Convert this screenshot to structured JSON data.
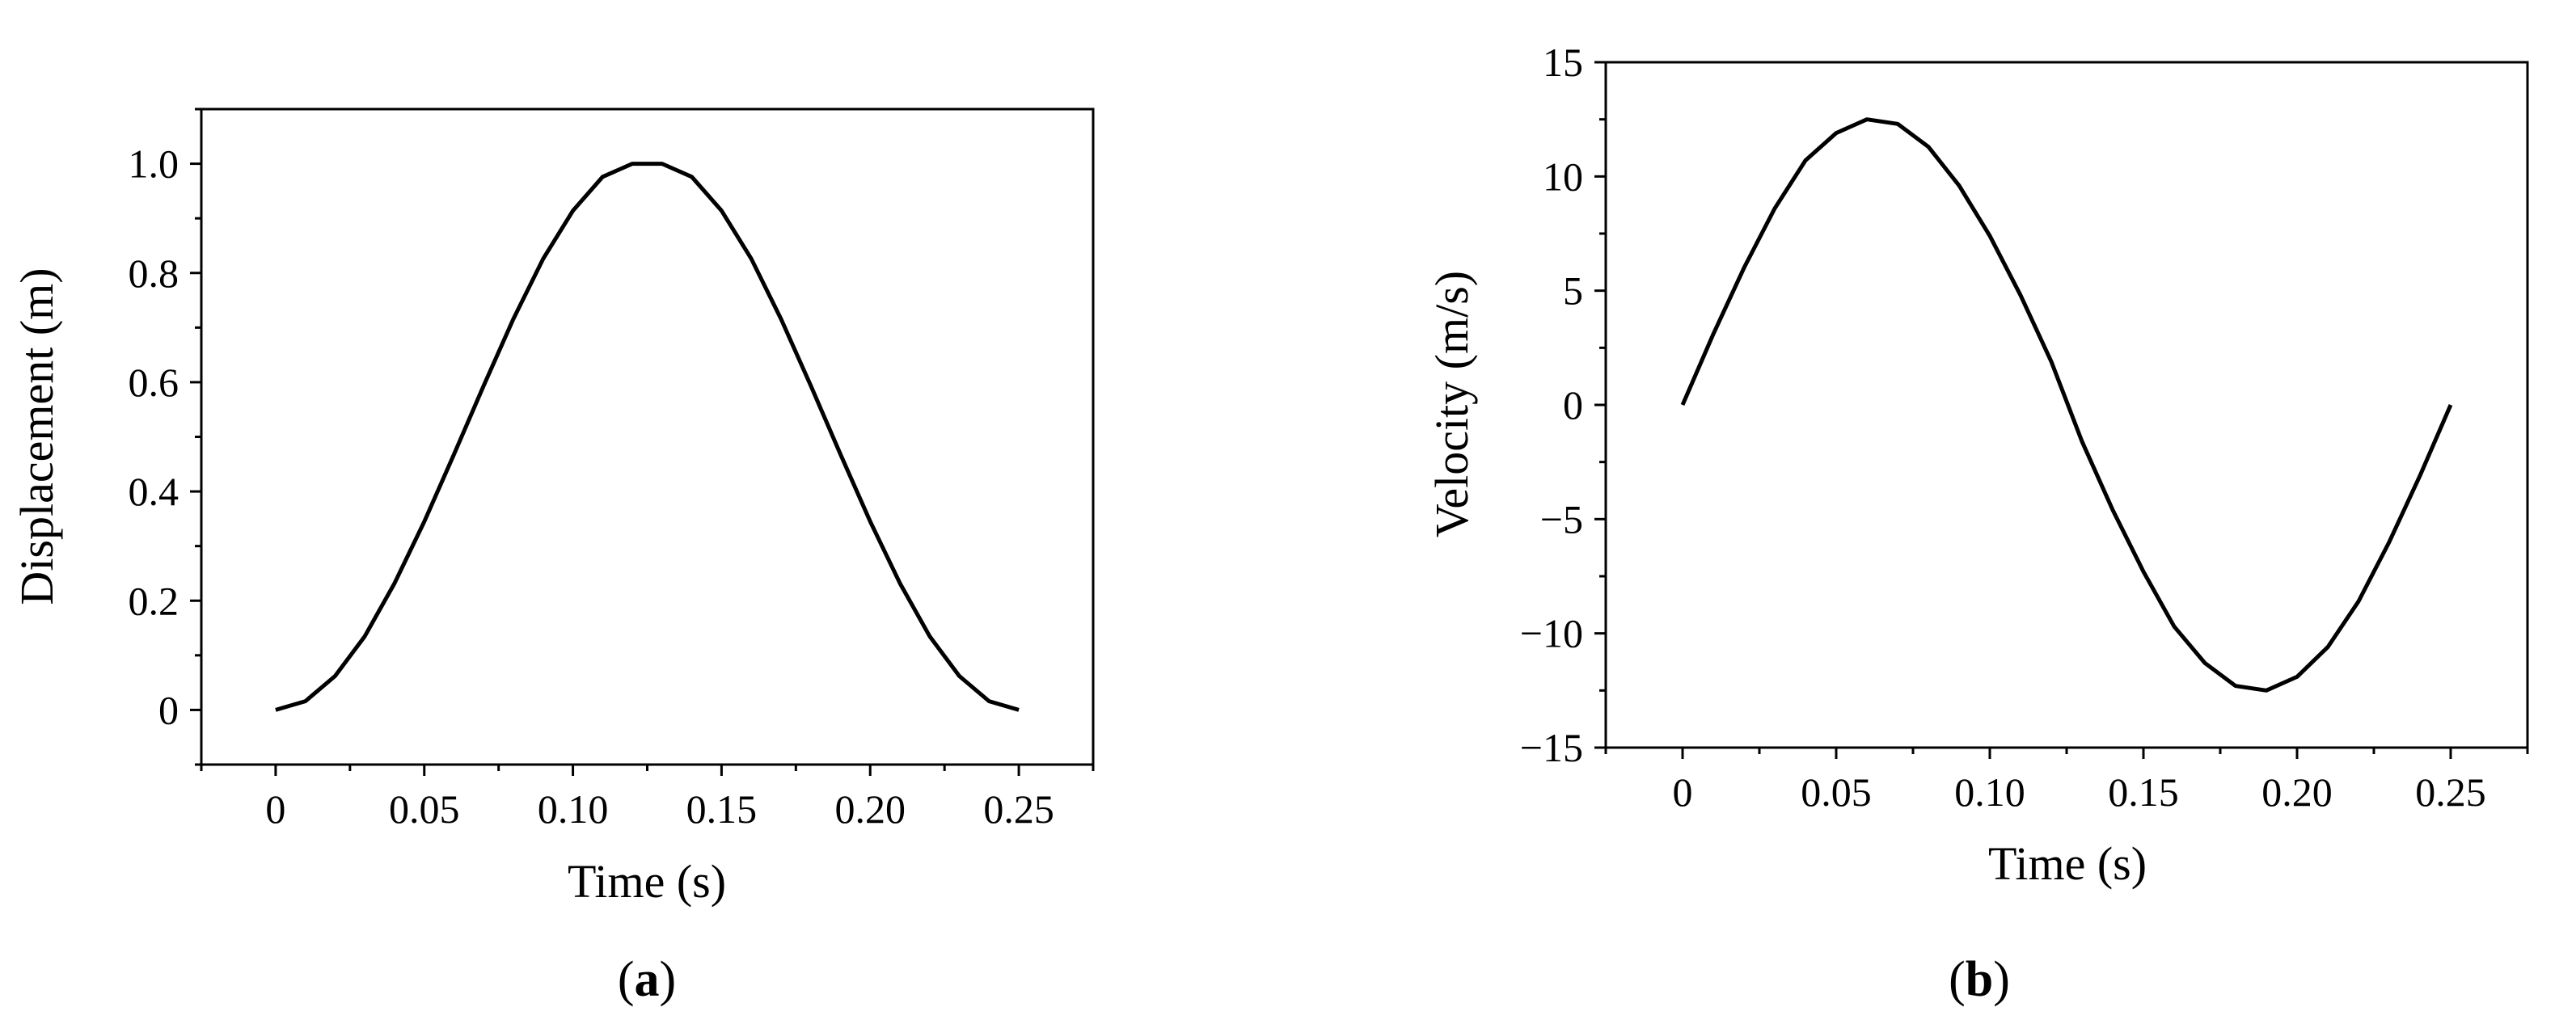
{
  "chart_data": [
    {
      "type": "line",
      "panel_label": {
        "open": "(",
        "letter": "a",
        "close": ")"
      },
      "xlabel": "Time (s)",
      "ylabel": "Displacement (m)",
      "xlim": [
        -0.025,
        0.275
      ],
      "ylim": [
        -0.1,
        1.1
      ],
      "xticks": [
        {
          "value": 0,
          "label": "0"
        },
        {
          "value": 0.05,
          "label": "0.05"
        },
        {
          "value": 0.1,
          "label": "0.10"
        },
        {
          "value": 0.15,
          "label": "0.15"
        },
        {
          "value": 0.2,
          "label": "0.20"
        },
        {
          "value": 0.25,
          "label": "0.25"
        }
      ],
      "yticks": [
        {
          "value": 0,
          "label": "0"
        },
        {
          "value": 0.2,
          "label": "0.2"
        },
        {
          "value": 0.4,
          "label": "0.4"
        },
        {
          "value": 0.6,
          "label": "0.6"
        },
        {
          "value": 0.8,
          "label": "0.8"
        },
        {
          "value": 1.0,
          "label": "1.0"
        }
      ],
      "x_minor_ticks": [
        -0.025,
        0.025,
        0.075,
        0.125,
        0.175,
        0.225,
        0.275
      ],
      "y_minor_ticks": [
        -0.1,
        0.1,
        0.3,
        0.5,
        0.7,
        0.9,
        1.1
      ],
      "grid": false,
      "series": [
        {
          "color": "#000000",
          "x": [
            0,
            0.01,
            0.02,
            0.03,
            0.04,
            0.05,
            0.06,
            0.07,
            0.08,
            0.09,
            0.1,
            0.11,
            0.12,
            0.13,
            0.14,
            0.15,
            0.16,
            0.17,
            0.18,
            0.19,
            0.2,
            0.21,
            0.22,
            0.23,
            0.24,
            0.25
          ],
          "y": [
            0,
            0.016,
            0.062,
            0.135,
            0.232,
            0.345,
            0.468,
            0.594,
            0.716,
            0.826,
            0.914,
            0.976,
            1.0,
            1.0,
            0.976,
            0.914,
            0.826,
            0.716,
            0.594,
            0.468,
            0.345,
            0.232,
            0.135,
            0.062,
            0.016,
            0
          ]
        }
      ]
    },
    {
      "type": "line",
      "panel_label": {
        "open": "(",
        "letter": "b",
        "close": ")"
      },
      "xlabel": "Time (s)",
      "ylabel": "Velocity (m/s)",
      "xlim": [
        -0.025,
        0.275
      ],
      "ylim": [
        -15,
        15
      ],
      "xticks": [
        {
          "value": 0,
          "label": "0"
        },
        {
          "value": 0.05,
          "label": "0.05"
        },
        {
          "value": 0.1,
          "label": "0.10"
        },
        {
          "value": 0.15,
          "label": "0.15"
        },
        {
          "value": 0.2,
          "label": "0.20"
        },
        {
          "value": 0.25,
          "label": "0.25"
        }
      ],
      "yticks": [
        {
          "value": -15,
          "label": "−15"
        },
        {
          "value": -10,
          "label": "−10"
        },
        {
          "value": -5,
          "label": "−5"
        },
        {
          "value": 0,
          "label": "0"
        },
        {
          "value": 5,
          "label": "5"
        },
        {
          "value": 10,
          "label": "10"
        },
        {
          "value": 15,
          "label": "15"
        }
      ],
      "x_minor_ticks": [
        -0.025,
        0.025,
        0.075,
        0.125,
        0.175,
        0.225,
        0.275
      ],
      "y_minor_ticks": [
        -12.5,
        -7.5,
        -2.5,
        2.5,
        7.5,
        12.5
      ],
      "grid": false,
      "series": [
        {
          "color": "#000000",
          "x": [
            0,
            0.01,
            0.02,
            0.03,
            0.04,
            0.05,
            0.06,
            0.07,
            0.08,
            0.09,
            0.1,
            0.11,
            0.12,
            0.13,
            0.14,
            0.15,
            0.16,
            0.17,
            0.18,
            0.19,
            0.2,
            0.21,
            0.22,
            0.23,
            0.24,
            0.25
          ],
          "y": [
            0,
            3.1,
            6.0,
            8.6,
            10.7,
            11.9,
            12.5,
            12.3,
            11.3,
            9.6,
            7.4,
            4.8,
            1.9,
            -1.6,
            -4.6,
            -7.3,
            -9.7,
            -11.3,
            -12.3,
            -12.5,
            -11.9,
            -10.6,
            -8.6,
            -6.0,
            -3.1,
            0
          ]
        }
      ]
    }
  ]
}
